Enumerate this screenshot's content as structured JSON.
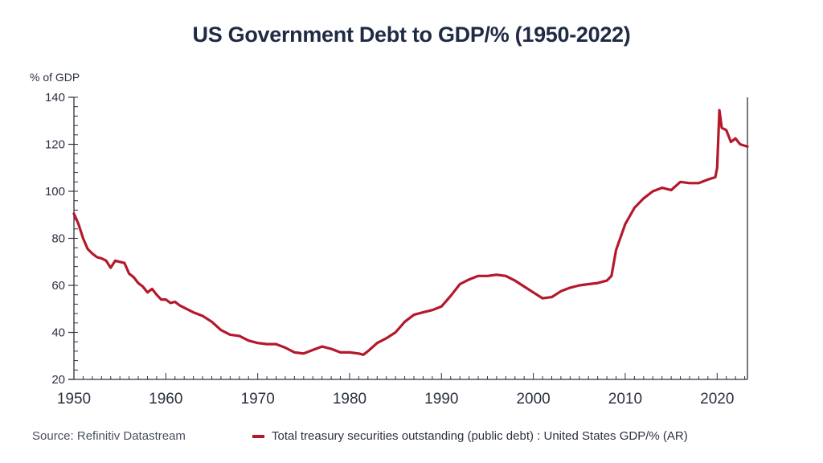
{
  "chart_data": {
    "type": "line",
    "title": "US Government Debt to GDP/% (1950-2022)",
    "ylabel": "% of GDP",
    "xlabel": "",
    "xlim": [
      1950,
      2023.3
    ],
    "ylim": [
      20,
      140
    ],
    "xticks": [
      1950,
      1960,
      1970,
      1980,
      1990,
      2000,
      2010,
      2020
    ],
    "yticks": [
      20,
      40,
      60,
      80,
      100,
      120,
      140
    ],
    "grid": false,
    "legend_position": "bottom",
    "source": "Source: Refinitiv Datastream",
    "series": [
      {
        "name": "Total treasury securities outstanding (public debt) : United States GDP/% (AR)",
        "color": "#b5182b",
        "x": [
          1950,
          1950.5,
          1951,
          1951.5,
          1952,
          1952.5,
          1953,
          1953.5,
          1954,
          1954.5,
          1955,
          1955.5,
          1956,
          1956.5,
          1957,
          1957.5,
          1958,
          1958.5,
          1959,
          1959.5,
          1960,
          1960.5,
          1961,
          1961.5,
          1962,
          1963,
          1964,
          1965,
          1966,
          1967,
          1968,
          1969,
          1970,
          1971,
          1972,
          1973,
          1974,
          1975,
          1976,
          1977,
          1978,
          1979,
          1980,
          1981,
          1981.5,
          1982,
          1983,
          1984,
          1985,
          1986,
          1987,
          1988,
          1989,
          1990,
          1991,
          1992,
          1993,
          1994,
          1995,
          1996,
          1997,
          1998,
          1999,
          2000,
          2001,
          2002,
          2003,
          2004,
          2005,
          2006,
          2007,
          2008,
          2008.5,
          2009,
          2010,
          2011,
          2012,
          2013,
          2014,
          2015,
          2016,
          2017,
          2018,
          2019,
          2019.8,
          2020,
          2020.25,
          2020.5,
          2021,
          2021.5,
          2022,
          2022.5,
          2023.3
        ],
        "y": [
          90.5,
          86,
          80,
          75.5,
          73.5,
          72,
          71.5,
          70.5,
          67.5,
          70.5,
          70,
          69.5,
          65,
          63.5,
          61,
          59.5,
          57,
          58.5,
          56,
          54,
          54,
          52.5,
          53,
          51.5,
          50.5,
          48.5,
          47,
          44.5,
          41,
          39,
          38.5,
          36.5,
          35.5,
          35,
          35,
          33.5,
          31.5,
          31,
          32.5,
          34,
          33,
          31.5,
          31.5,
          31,
          30.5,
          32,
          35.5,
          37.5,
          40,
          44.5,
          47.5,
          48.5,
          49.5,
          51,
          55.5,
          60.5,
          62.5,
          64,
          64,
          64.5,
          64,
          62,
          59.5,
          57,
          54.5,
          55,
          57.5,
          59,
          60,
          60.5,
          61,
          62,
          64,
          75,
          86,
          93,
          97,
          100,
          101.5,
          100.5,
          104,
          103.5,
          103.5,
          105,
          106,
          110,
          134.5,
          127,
          126,
          121,
          122.5,
          120,
          119
        ]
      }
    ]
  }
}
